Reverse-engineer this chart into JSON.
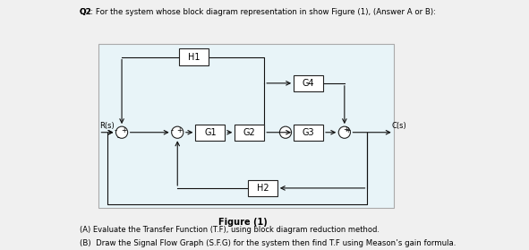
{
  "title": "Q2: For the system whose block diagram representation in show Figure (1), (Answer A or B):",
  "figure_label": "Figure (1)",
  "caption_a": "(A) Evaluate the Transfer Function (T.F), using block diagram reduction method.",
  "caption_b": "(B)  Draw the Signal Flow Graph (S.F.G) for the system then find T.F using Meason’s gain formula.",
  "bg_color": "#e8f4f8",
  "box_color": "#ffffff",
  "box_edge": "#000000",
  "blocks": [
    "G1",
    "G2",
    "G3",
    "G4",
    "H1",
    "H2"
  ],
  "summing_junctions": 4,
  "signals": [
    "R(s)",
    "C(s)"
  ]
}
